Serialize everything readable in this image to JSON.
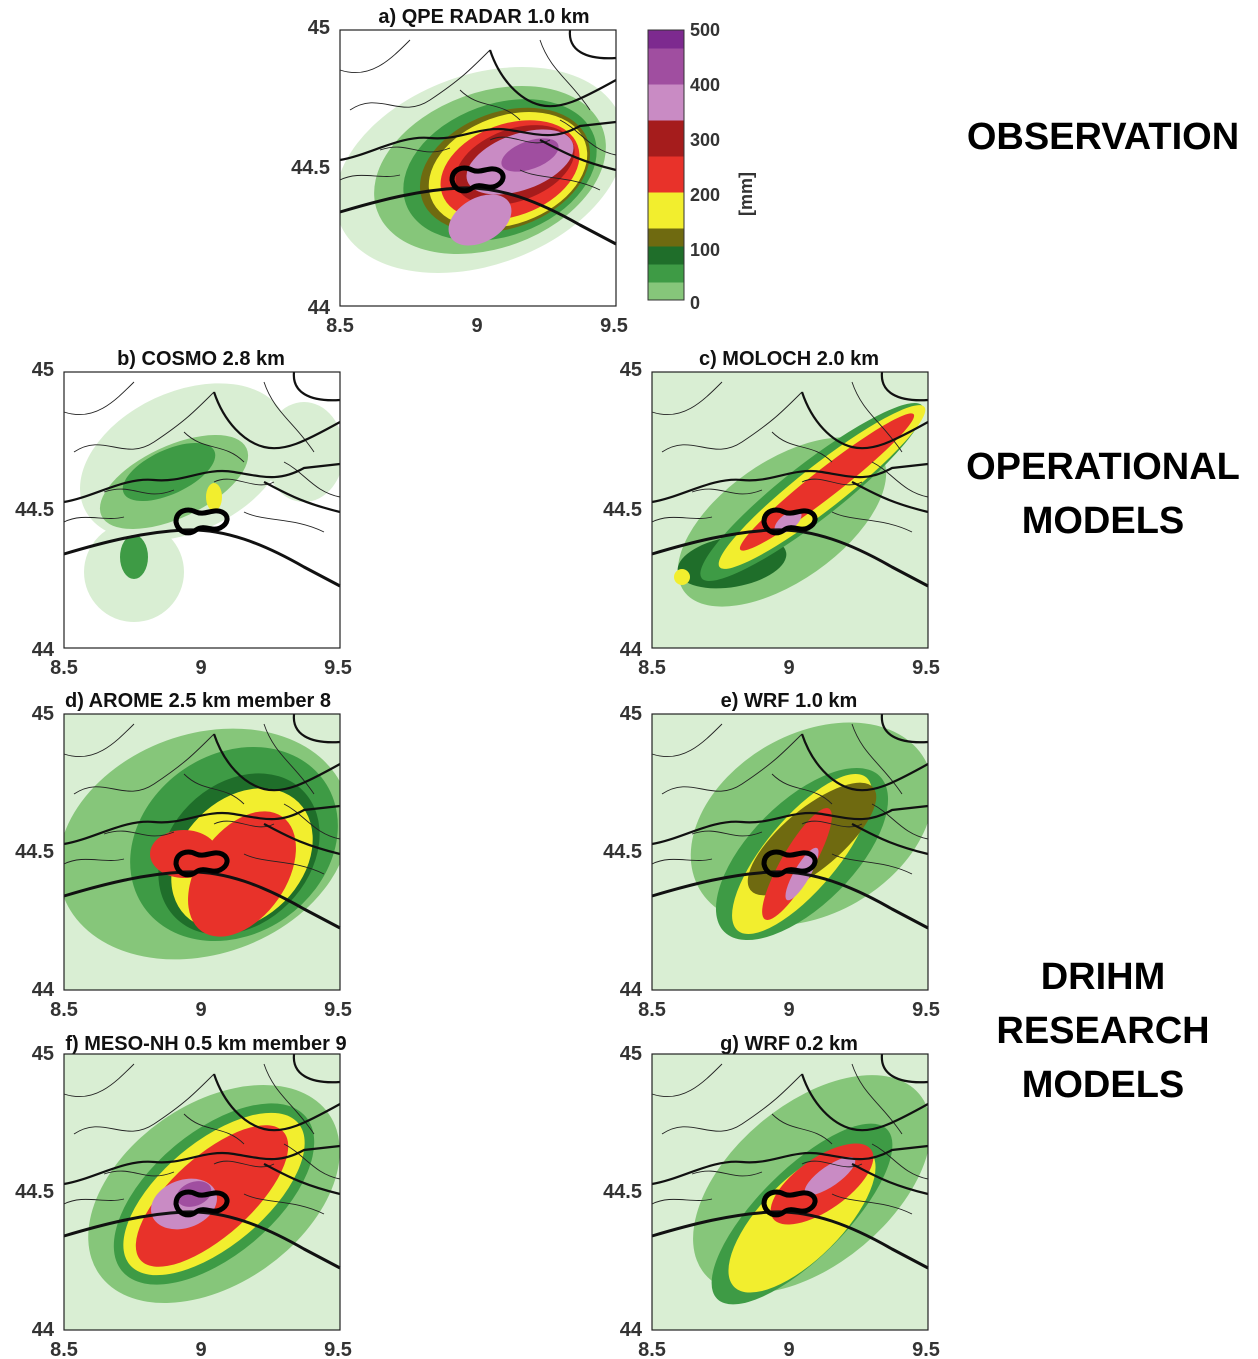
{
  "panels": [
    {
      "id": "a",
      "title": "a) QPE RADAR 1.0 km",
      "pattern": "radar"
    },
    {
      "id": "b",
      "title": "b) COSMO 2.8 km",
      "pattern": "cosmo"
    },
    {
      "id": "c",
      "title": "c) MOLOCH 2.0 km",
      "pattern": "moloch"
    },
    {
      "id": "d",
      "title": "d) AROME 2.5 km member 8",
      "pattern": "arome"
    },
    {
      "id": "e",
      "title": "e) WRF 1.0 km",
      "pattern": "wrf1"
    },
    {
      "id": "f",
      "title": "f) MESO-NH 0.5 km member 9",
      "pattern": "mesonh"
    },
    {
      "id": "g",
      "title": "g) WRF 0.2 km",
      "pattern": "wrf02"
    }
  ],
  "axes": {
    "x_ticks": [
      "8.5",
      "9",
      "9.5"
    ],
    "y_ticks": [
      "44",
      "44.5",
      "45"
    ],
    "xlim": [
      8.5,
      9.5
    ],
    "ylim": [
      44,
      45
    ]
  },
  "colorbar": {
    "unit": "[mm]",
    "ticks": [
      "0",
      "100",
      "200",
      "300",
      "400",
      "500"
    ],
    "range": [
      0,
      500
    ]
  },
  "group_labels": {
    "observation": "OBSERVATION",
    "operational_1": "OPERATIONAL",
    "operational_2": "MODELS",
    "drihm_1": "DRIHM",
    "drihm_2": "RESEARCH",
    "drihm_3": "MODELS"
  },
  "colors": {
    "light_green": "#d9eed3",
    "mid_green": "#86c67a",
    "green": "#3e9b45",
    "dark_green": "#1f6e2a",
    "olive": "#6f6a10",
    "yellow": "#f2ee2e",
    "red": "#e8322a",
    "dark_red": "#a51c1c",
    "light_purple": "#c98bc4",
    "purple": "#a04ea0",
    "dark_purple": "#7d2a8f",
    "coast": "#111111"
  }
}
